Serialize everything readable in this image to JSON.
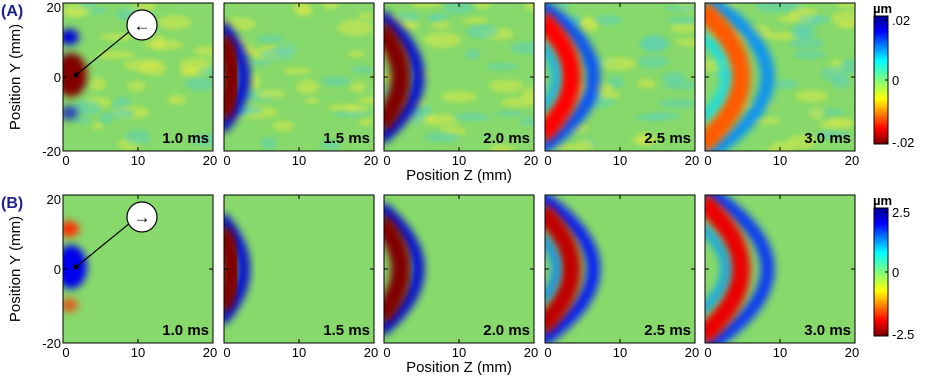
{
  "figure": {
    "rows": [
      {
        "id": "A",
        "label": "(A)",
        "ylabel": "Position Y (mm)",
        "xlabel": "Position Z (mm)",
        "colorbar": {
          "unit": "µm",
          "ticks": [
            ".02",
            "0",
            "-.02"
          ],
          "range": [
            -0.02,
            0.02
          ],
          "colormap": "jet-reversed"
        },
        "arrow_marker": {
          "direction": "left",
          "glyph": "←"
        }
      },
      {
        "id": "B",
        "label": "(B)",
        "ylabel": "Position Y (mm)",
        "xlabel": "Position Z (mm)",
        "colorbar": {
          "unit": "µm",
          "ticks": [
            "2.5",
            "0",
            "-2.5"
          ],
          "range": [
            -2.5,
            2.5
          ],
          "colormap": "jet-reversed"
        },
        "arrow_marker": {
          "direction": "right",
          "glyph": "→"
        }
      }
    ],
    "time_labels": [
      "1.0 ms",
      "1.5 ms",
      "2.0 ms",
      "2.5 ms",
      "3.0 ms"
    ]
  },
  "chart_data": [
    {
      "type": "heatmap",
      "row": "A",
      "title": "",
      "xlabel": "Position Z (mm)",
      "ylabel": "Position Y (mm)",
      "xlim": [
        0,
        20
      ],
      "ylim": [
        -20,
        20
      ],
      "x_ticks": [
        "0",
        "10",
        "20"
      ],
      "y_ticks": [
        "20",
        "0",
        "-20"
      ],
      "colorbar_unit": "µm",
      "zlim": [
        -0.02,
        0.02
      ],
      "panels": [
        {
          "time": "1.0 ms",
          "front_z": 0.5,
          "peak_value": -0.02
        },
        {
          "time": "1.5 ms",
          "front_z": 2.5,
          "peak_value": -0.02
        },
        {
          "time": "2.0 ms",
          "front_z": 5.0,
          "peak_value": -0.02
        },
        {
          "time": "2.5 ms",
          "front_z": 7.5,
          "peak_value": -0.015
        },
        {
          "time": "3.0 ms",
          "front_z": 10.0,
          "peak_value": -0.012
        }
      ]
    },
    {
      "type": "heatmap",
      "row": "B",
      "title": "",
      "xlabel": "Position Z (mm)",
      "ylabel": "Position Y (mm)",
      "xlim": [
        0,
        20
      ],
      "ylim": [
        -20,
        20
      ],
      "x_ticks": [
        "0",
        "10",
        "20"
      ],
      "y_ticks": [
        "20",
        "0",
        "-20"
      ],
      "colorbar_unit": "µm",
      "zlim": [
        -2.5,
        2.5
      ],
      "panels": [
        {
          "time": "1.0 ms",
          "front_z": 0.5,
          "peak_value": 2.0
        },
        {
          "time": "1.5 ms",
          "front_z": 2.5,
          "peak_value": -2.5
        },
        {
          "time": "2.0 ms",
          "front_z": 5.0,
          "peak_value": -2.5
        },
        {
          "time": "2.5 ms",
          "front_z": 7.5,
          "peak_value": -2.2
        },
        {
          "time": "3.0 ms",
          "front_z": 10.0,
          "peak_value": -2.0
        }
      ]
    }
  ]
}
